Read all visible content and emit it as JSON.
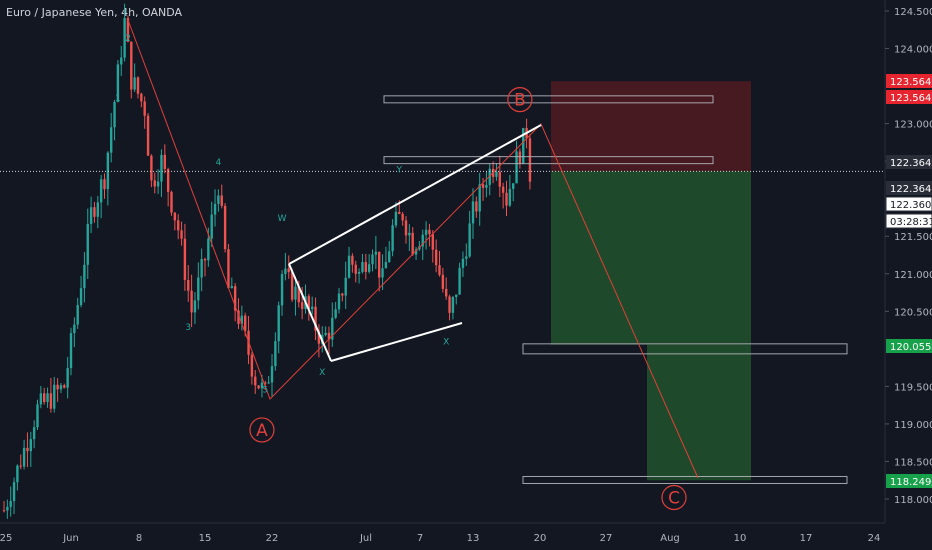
{
  "title": "Euro / Japanese Yen, 4h, OANDA",
  "colors": {
    "background": "#131722",
    "up": "#26a69a",
    "down": "#ef5350",
    "axis_text": "#b2b5be",
    "drawing_red": "#e0403a",
    "white_line": "#ffffff"
  },
  "chart_data": {
    "type": "candlestick",
    "symbol": "EURJPY",
    "interval": "4h",
    "source": "OANDA",
    "ylim": [
      117.8,
      124.6
    ],
    "y_ticks": [
      {
        "value": 118.0,
        "label": "118.000"
      },
      {
        "value": 118.5,
        "label": "118.500"
      },
      {
        "value": 119.0,
        "label": "119.000"
      },
      {
        "value": 119.5,
        "label": "119.500"
      },
      {
        "value": 120.5,
        "label": "120.500"
      },
      {
        "value": 121.0,
        "label": "121.000"
      },
      {
        "value": 121.5,
        "label": "121.500"
      },
      {
        "value": 122.5,
        "label": "122.500"
      },
      {
        "value": 123.0,
        "label": "123.000"
      },
      {
        "value": 124.0,
        "label": "124.000"
      },
      {
        "value": 124.5,
        "label": "124.500"
      }
    ],
    "x_ticks": [
      "25",
      "Jun",
      "8",
      "15",
      "22",
      "Jul",
      "7",
      "13",
      "20",
      "27",
      "Aug",
      "10",
      "17",
      "24"
    ],
    "price_labels": [
      {
        "value": 123.564,
        "label": "123.564",
        "style": "red"
      },
      {
        "value": 123.44,
        "label": "123.564",
        "style": "red"
      },
      {
        "value": 122.5,
        "label": "122.364",
        "style": "dark"
      },
      {
        "value": 122.364,
        "label": "122.364",
        "style": "dark"
      },
      {
        "value": 122.36,
        "label": "122.360",
        "style": "light"
      },
      {
        "value": 122.2,
        "label": "03:28:31",
        "style": "light"
      },
      {
        "value": 120.055,
        "label": "120.055",
        "style": "green"
      },
      {
        "value": 118.249,
        "label": "118.249",
        "style": "green"
      }
    ],
    "wave_labels": [
      {
        "text": "2",
        "price": 124.1,
        "bar": 37,
        "color": "teal"
      },
      {
        "text": "1",
        "price": 123.3,
        "bar": 34,
        "color": "teal"
      },
      {
        "text": "4",
        "price": 122.45,
        "bar": 64,
        "color": "teal"
      },
      {
        "text": "3",
        "price": 120.25,
        "bar": 55,
        "color": "teal"
      },
      {
        "text": "5",
        "price": 119.42,
        "bar": 78,
        "color": "teal"
      },
      {
        "text": "W",
        "price": 121.7,
        "bar": 83,
        "color": "teal"
      },
      {
        "text": "X",
        "price": 119.65,
        "bar": 95,
        "color": "teal"
      },
      {
        "text": "Y",
        "price": 122.35,
        "bar": 118,
        "color": "teal"
      },
      {
        "text": "X",
        "price": 120.06,
        "bar": 132,
        "color": "teal"
      }
    ],
    "circled_labels": [
      {
        "text": "A",
        "price": 118.92,
        "bar": 77
      },
      {
        "text": "B",
        "price": 123.32,
        "bar": 154
      },
      {
        "text": "C",
        "price": 118.02,
        "bar": 200
      }
    ]
  }
}
